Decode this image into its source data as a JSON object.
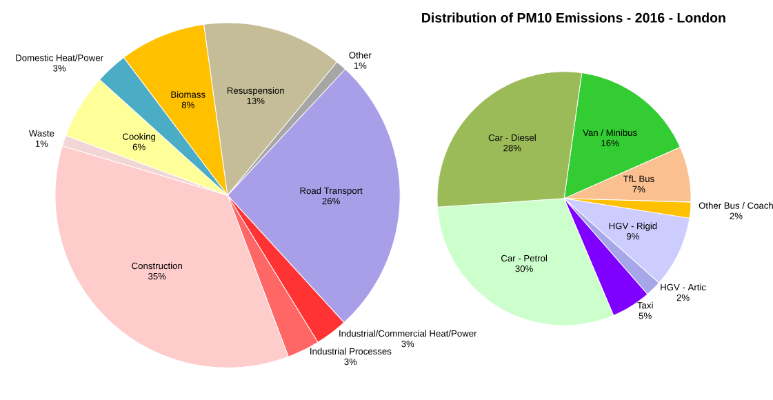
{
  "chart_data": [
    {
      "type": "pie",
      "title": "Distribution of PM10 Emissions - 2016 - London",
      "categories": [
        "Road Transport",
        "Industrial/Commercial Heat/Power",
        "Industrial Processes",
        "Construction",
        "Waste",
        "Cooking",
        "Domestic Heat/Power",
        "Biomass",
        "Resuspension",
        "Other"
      ],
      "values": [
        26,
        3,
        3,
        35,
        1,
        6,
        3,
        8,
        13,
        1
      ],
      "value_labels": [
        "26%",
        "3%",
        "3%",
        "35%",
        "1%",
        "6%",
        "3%",
        "8%",
        "13%",
        "1%"
      ],
      "colors": [
        "#a89fe8",
        "#ff3333",
        "#ff6666",
        "#ffcccc",
        "#f2d5d5",
        "#ffff99",
        "#4bacc6",
        "#ffc000",
        "#c4bd97",
        "#a6a6a6"
      ]
    },
    {
      "type": "pie",
      "categories": [
        "Van / Minibus",
        "TfL Bus",
        "Other Bus / Coach",
        "HGV - Rigid",
        "HGV - Artic",
        "Taxi",
        "Car - Petrol",
        "Car - Diesel"
      ],
      "values": [
        16,
        7,
        2,
        9,
        2,
        5,
        30,
        28
      ],
      "value_labels": [
        "16%",
        "7%",
        "2%",
        "9%",
        "2%",
        "5%",
        "30%",
        "28%"
      ],
      "colors": [
        "#33cc33",
        "#fac090",
        "#ffc000",
        "#ccccff",
        "#a6a6e8",
        "#7f00ff",
        "#ccffcc",
        "#9bbb59"
      ]
    }
  ]
}
